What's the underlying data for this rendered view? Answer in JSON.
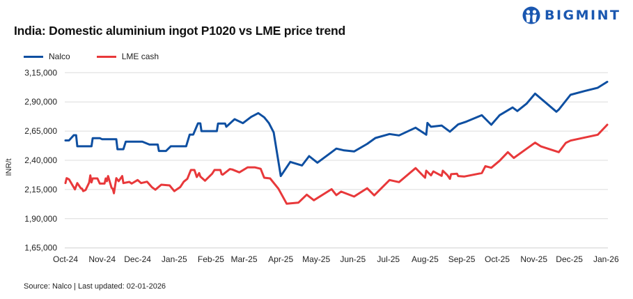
{
  "brand": {
    "name": "BIGMINT",
    "color": "#1a57b0"
  },
  "chart_data": {
    "type": "line",
    "title": "India: Domestic aluminium ingot P1020 vs LME price trend",
    "ylabel": "INR/t",
    "xlabel": "",
    "ylim": [
      165000,
      315000
    ],
    "yticks": [
      165000,
      190000,
      215000,
      240000,
      265000,
      290000,
      315000
    ],
    "ytick_labels": [
      "1,65,000",
      "1,90,000",
      "2,15,000",
      "2,40,000",
      "2,65,000",
      "2,90,000",
      "3,15,000"
    ],
    "xlim": [
      "2024-10-01",
      "2026-01-02"
    ],
    "xticks": [
      "2024-10-01",
      "2024-11-01",
      "2024-12-01",
      "2025-01-01",
      "2025-02-01",
      "2025-03-01",
      "2025-04-01",
      "2025-05-01",
      "2025-06-01",
      "2025-07-01",
      "2025-08-01",
      "2025-09-01",
      "2025-10-01",
      "2025-11-01",
      "2025-12-01",
      "2026-01-01"
    ],
    "xtick_labels": [
      "Oct-24",
      "Nov-24",
      "Dec-24",
      "Jan-25",
      "Feb-25",
      "Mar-25",
      "Apr-25",
      "May-25",
      "Jun-25",
      "Jul-25",
      "Aug-25",
      "Sep-25",
      "Oct-25",
      "Nov-25",
      "Dec-25",
      "Jan-26"
    ],
    "grid": true,
    "legend": "top-left",
    "series": [
      {
        "name": "Nalco",
        "color": "#0e4fa1",
        "points": [
          [
            "2024-10-01",
            257000
          ],
          [
            "2024-10-04",
            257000
          ],
          [
            "2024-10-08",
            261500
          ],
          [
            "2024-10-10",
            261500
          ],
          [
            "2024-10-11",
            252000
          ],
          [
            "2024-10-23",
            252000
          ],
          [
            "2024-10-24",
            259000
          ],
          [
            "2024-10-30",
            259000
          ],
          [
            "2024-11-01",
            258000
          ],
          [
            "2024-11-13",
            258000
          ],
          [
            "2024-11-14",
            249500
          ],
          [
            "2024-11-19",
            249500
          ],
          [
            "2024-11-21",
            256000
          ],
          [
            "2024-12-05",
            256000
          ],
          [
            "2024-12-11",
            253500
          ],
          [
            "2024-12-18",
            253500
          ],
          [
            "2024-12-19",
            248000
          ],
          [
            "2024-12-25",
            248000
          ],
          [
            "2024-12-29",
            252000
          ],
          [
            "2025-01-11",
            252000
          ],
          [
            "2025-01-14",
            262000
          ],
          [
            "2025-01-17",
            262000
          ],
          [
            "2025-01-21",
            271600
          ],
          [
            "2025-01-23",
            271600
          ],
          [
            "2025-01-24",
            265000
          ],
          [
            "2025-02-06",
            265000
          ],
          [
            "2025-02-07",
            271500
          ],
          [
            "2025-02-13",
            271500
          ],
          [
            "2025-02-14",
            268700
          ],
          [
            "2025-02-21",
            275200
          ],
          [
            "2025-02-28",
            271800
          ],
          [
            "2025-03-07",
            277200
          ],
          [
            "2025-03-13",
            280400
          ],
          [
            "2025-03-18",
            276800
          ],
          [
            "2025-03-22",
            271800
          ],
          [
            "2025-03-26",
            263900
          ],
          [
            "2025-04-01",
            226500
          ],
          [
            "2025-04-09",
            238600
          ],
          [
            "2025-04-19",
            235600
          ],
          [
            "2025-04-25",
            243600
          ],
          [
            "2025-05-02",
            238000
          ],
          [
            "2025-05-14",
            247000
          ],
          [
            "2025-05-18",
            250000
          ],
          [
            "2025-05-24",
            248600
          ],
          [
            "2025-06-02",
            247600
          ],
          [
            "2025-06-13",
            254000
          ],
          [
            "2025-06-20",
            259100
          ],
          [
            "2025-07-02",
            262500
          ],
          [
            "2025-07-10",
            261300
          ],
          [
            "2025-07-24",
            267900
          ],
          [
            "2025-08-02",
            261900
          ],
          [
            "2025-08-03",
            272000
          ],
          [
            "2025-08-06",
            268700
          ],
          [
            "2025-08-15",
            269800
          ],
          [
            "2025-08-22",
            264500
          ],
          [
            "2025-08-29",
            270800
          ],
          [
            "2025-09-05",
            273200
          ],
          [
            "2025-09-18",
            278600
          ],
          [
            "2025-09-26",
            270400
          ],
          [
            "2025-10-02",
            277400
          ],
          [
            "2025-10-03",
            278600
          ],
          [
            "2025-10-14",
            285200
          ],
          [
            "2025-10-18",
            282200
          ],
          [
            "2025-10-26",
            288700
          ],
          [
            "2025-11-02",
            297100
          ],
          [
            "2025-11-20",
            281600
          ],
          [
            "2025-11-22",
            283400
          ],
          [
            "2025-12-02",
            296100
          ],
          [
            "2025-12-14",
            299300
          ],
          [
            "2025-12-25",
            302100
          ],
          [
            "2026-01-02",
            307200
          ]
        ]
      },
      {
        "name": "LME cash",
        "color": "#e8383a",
        "points": [
          [
            "2024-10-01",
            220500
          ],
          [
            "2024-10-02",
            224700
          ],
          [
            "2024-10-04",
            223700
          ],
          [
            "2024-10-09",
            215100
          ],
          [
            "2024-10-11",
            220500
          ],
          [
            "2024-10-14",
            216100
          ],
          [
            "2024-10-15",
            215700
          ],
          [
            "2024-10-16",
            213600
          ],
          [
            "2024-10-18",
            214600
          ],
          [
            "2024-10-21",
            220900
          ],
          [
            "2024-10-22",
            227100
          ],
          [
            "2024-10-23",
            221100
          ],
          [
            "2024-10-24",
            224500
          ],
          [
            "2024-10-28",
            224500
          ],
          [
            "2024-10-30",
            220100
          ],
          [
            "2024-11-03",
            220100
          ],
          [
            "2024-11-04",
            224500
          ],
          [
            "2024-11-05",
            222100
          ],
          [
            "2024-11-06",
            226500
          ],
          [
            "2024-11-09",
            216500
          ],
          [
            "2024-11-10",
            215700
          ],
          [
            "2024-11-11",
            211800
          ],
          [
            "2024-11-13",
            224700
          ],
          [
            "2024-11-15",
            222100
          ],
          [
            "2024-11-18",
            226500
          ],
          [
            "2024-11-19",
            220500
          ],
          [
            "2024-11-24",
            221500
          ],
          [
            "2024-11-26",
            220100
          ],
          [
            "2024-12-01",
            223100
          ],
          [
            "2024-12-04",
            220500
          ],
          [
            "2024-12-09",
            221700
          ],
          [
            "2024-12-13",
            217100
          ],
          [
            "2024-12-16",
            214800
          ],
          [
            "2024-12-21",
            219100
          ],
          [
            "2024-12-28",
            218500
          ],
          [
            "2025-01-01",
            213600
          ],
          [
            "2025-01-06",
            217100
          ],
          [
            "2025-01-09",
            221700
          ],
          [
            "2025-01-12",
            224100
          ],
          [
            "2025-01-15",
            231700
          ],
          [
            "2025-01-18",
            231700
          ],
          [
            "2025-01-20",
            225700
          ],
          [
            "2025-01-22",
            229100
          ],
          [
            "2025-01-23",
            226100
          ],
          [
            "2025-01-27",
            222500
          ],
          [
            "2025-02-02",
            228500
          ],
          [
            "2025-02-04",
            231700
          ],
          [
            "2025-02-09",
            231700
          ],
          [
            "2025-02-10",
            228100
          ],
          [
            "2025-02-11",
            227700
          ],
          [
            "2025-02-17",
            232500
          ],
          [
            "2025-02-19",
            232100
          ],
          [
            "2025-02-25",
            229700
          ],
          [
            "2025-03-04",
            234000
          ],
          [
            "2025-03-10",
            234000
          ],
          [
            "2025-03-15",
            232700
          ],
          [
            "2025-03-18",
            225100
          ],
          [
            "2025-03-23",
            224500
          ],
          [
            "2025-03-30",
            215700
          ],
          [
            "2025-04-06",
            202800
          ],
          [
            "2025-04-16",
            203800
          ],
          [
            "2025-04-23",
            210600
          ],
          [
            "2025-04-29",
            205800
          ],
          [
            "2025-05-14",
            215300
          ],
          [
            "2025-05-18",
            210200
          ],
          [
            "2025-05-22",
            213200
          ],
          [
            "2025-06-02",
            209000
          ],
          [
            "2025-06-13",
            216100
          ],
          [
            "2025-06-19",
            210000
          ],
          [
            "2025-07-02",
            223100
          ],
          [
            "2025-07-10",
            221300
          ],
          [
            "2025-07-24",
            233300
          ],
          [
            "2025-08-01",
            225100
          ],
          [
            "2025-08-02",
            231100
          ],
          [
            "2025-08-06",
            227100
          ],
          [
            "2025-08-08",
            230500
          ],
          [
            "2025-08-15",
            226700
          ],
          [
            "2025-08-16",
            231100
          ],
          [
            "2025-08-20",
            227100
          ],
          [
            "2025-08-22",
            224100
          ],
          [
            "2025-08-23",
            228100
          ],
          [
            "2025-08-28",
            228500
          ],
          [
            "2025-08-29",
            226500
          ],
          [
            "2025-09-03",
            226100
          ],
          [
            "2025-09-18",
            229100
          ],
          [
            "2025-09-21",
            235000
          ],
          [
            "2025-09-26",
            233600
          ],
          [
            "2025-10-03",
            239600
          ],
          [
            "2025-10-10",
            247000
          ],
          [
            "2025-10-15",
            242000
          ],
          [
            "2025-10-26",
            250000
          ],
          [
            "2025-11-02",
            255100
          ],
          [
            "2025-11-07",
            251900
          ],
          [
            "2025-11-22",
            247000
          ],
          [
            "2025-11-28",
            254900
          ],
          [
            "2025-12-02",
            256900
          ],
          [
            "2025-12-25",
            261900
          ],
          [
            "2026-01-02",
            270400
          ]
        ]
      }
    ]
  },
  "source": "Source: Nalco | Last updated: 02-01-2026"
}
